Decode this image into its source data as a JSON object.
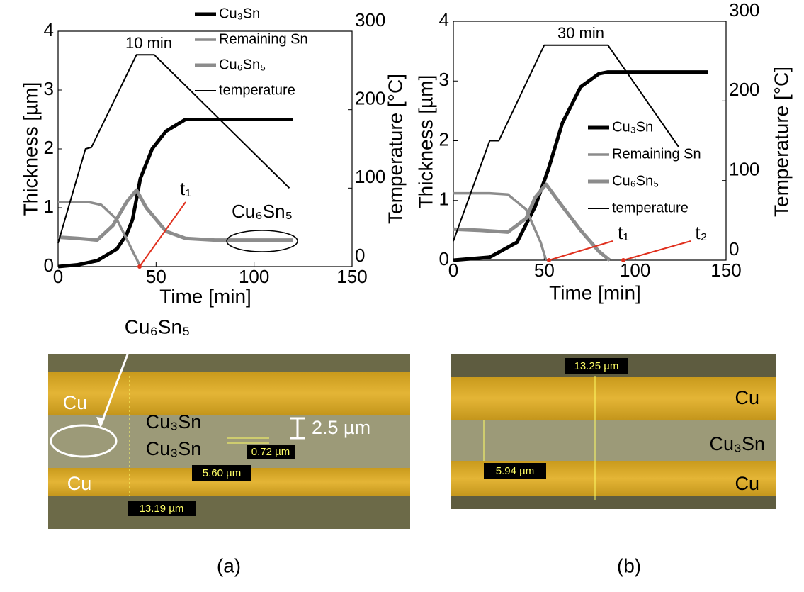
{
  "chart_data": [
    {
      "type": "line",
      "y_label": "Thickness [µm]",
      "y2_label": "Temperature [°C]",
      "x_label": "Time [min]",
      "xlim": [
        0,
        150
      ],
      "xticks": [
        0,
        50,
        100,
        150
      ],
      "ylim": [
        0,
        4
      ],
      "yticks": [
        0,
        1,
        2,
        3,
        4
      ],
      "y2lim": [
        0,
        300
      ],
      "y2ticks": [
        0,
        100,
        200,
        300
      ],
      "annotations": [
        "10 min",
        "t₁",
        "Cu₆Sn₅"
      ],
      "series": [
        {
          "name": "Cu₃Sn",
          "color": "#000000",
          "x": [
            0,
            10,
            20,
            30,
            35,
            38,
            42,
            48,
            55,
            65,
            120
          ],
          "values": [
            0,
            0.03,
            0.1,
            0.3,
            0.55,
            0.8,
            1.5,
            2.0,
            2.3,
            2.5,
            2.5
          ]
        },
        {
          "name": "Remaining Sn",
          "color": "#8c8c8c",
          "x": [
            0,
            15,
            22,
            30,
            36,
            42
          ],
          "values": [
            1.1,
            1.1,
            1.05,
            0.8,
            0.4,
            0
          ]
        },
        {
          "name": "Cu₆Sn₅",
          "color": "#8c8c8c",
          "x": [
            0,
            10,
            20,
            28,
            35,
            40,
            45,
            55,
            65,
            80,
            120
          ],
          "values": [
            0.5,
            0.48,
            0.45,
            0.7,
            1.1,
            1.3,
            1.0,
            0.6,
            0.48,
            0.45,
            0.45
          ]
        },
        {
          "name": "temperature",
          "color": "#000000",
          "axis": "y2",
          "x": [
            0,
            14,
            17,
            40,
            49,
            118
          ],
          "values": [
            30,
            150,
            152,
            270,
            270,
            100
          ]
        }
      ]
    },
    {
      "type": "line",
      "y_label": "Thickness [µm]",
      "y2_label": "Temperature [°C]",
      "x_label": "Time [min]",
      "xlim": [
        0,
        150
      ],
      "xticks": [
        0,
        50,
        100,
        150
      ],
      "ylim": [
        0,
        4
      ],
      "yticks": [
        0,
        1,
        2,
        3,
        4
      ],
      "y2lim": [
        0,
        300
      ],
      "y2ticks": [
        0,
        100,
        200,
        300
      ],
      "annotations": [
        "30 min",
        "t₁",
        "t₂"
      ],
      "series": [
        {
          "name": "Cu₃Sn",
          "color": "#000000",
          "x": [
            0,
            20,
            35,
            45,
            52,
            60,
            70,
            80,
            85,
            140
          ],
          "values": [
            0,
            0.05,
            0.3,
            0.9,
            1.5,
            2.3,
            2.9,
            3.12,
            3.15,
            3.15
          ]
        },
        {
          "name": "Remaining Sn",
          "color": "#8c8c8c",
          "x": [
            0,
            20,
            30,
            40,
            48,
            51
          ],
          "values": [
            1.12,
            1.12,
            1.1,
            0.85,
            0.3,
            0
          ]
        },
        {
          "name": "Cu₆Sn₅",
          "color": "#8c8c8c",
          "x": [
            0,
            15,
            30,
            40,
            45,
            51,
            60,
            70,
            80,
            86
          ],
          "values": [
            0.52,
            0.5,
            0.47,
            0.7,
            1.05,
            1.27,
            0.9,
            0.5,
            0.15,
            0
          ]
        },
        {
          "name": "temperature",
          "color": "#000000",
          "axis": "y2",
          "x": [
            0,
            20,
            25,
            50,
            85,
            124
          ],
          "values": [
            24,
            150,
            150,
            270,
            270,
            142
          ]
        }
      ]
    }
  ],
  "micrographs": [
    {
      "callout": "Cu₆Sn₅",
      "labels": [
        "Cu",
        "Cu₃Sn",
        "Cu₃Sn",
        "Cu"
      ],
      "scale": "2.5 µm",
      "measurements": [
        "0.72 µm",
        "5.60 µm",
        "13.19 µm"
      ],
      "caption": "(a)"
    },
    {
      "labels": [
        "Cu",
        "Cu₃Sn",
        "Cu"
      ],
      "measurements": [
        "13.25 µm",
        "5.94 µm"
      ],
      "caption": "(b)"
    }
  ]
}
